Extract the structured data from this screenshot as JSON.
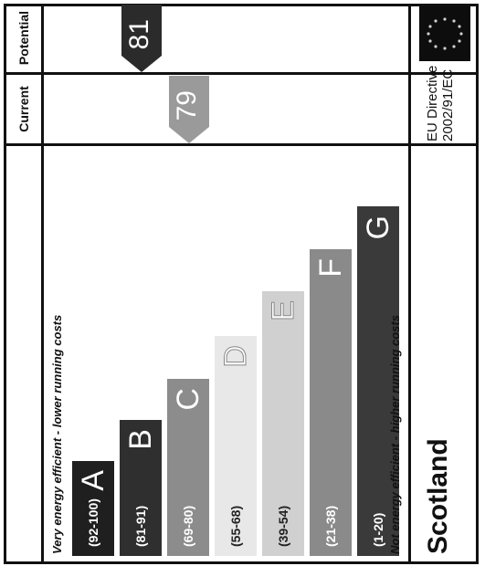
{
  "header": {
    "current": "Current",
    "potential": "Potential"
  },
  "labels": {
    "top": "Very energy efficient - lower running costs",
    "bottom": "Not energy efficient - higher running costs"
  },
  "bands": [
    {
      "range": "(92-100)",
      "letter": "A",
      "color": "#1f1f1f"
    },
    {
      "range": "(81-91)",
      "letter": "B",
      "color": "#2f2f2f"
    },
    {
      "range": "(69-80)",
      "letter": "C",
      "color": "#8c8c8c"
    },
    {
      "range": "(55-68)",
      "letter": "D",
      "color": "#e8e8e8"
    },
    {
      "range": "(39-54)",
      "letter": "E",
      "color": "#d0d0d0"
    },
    {
      "range": "(21-38)",
      "letter": "F",
      "color": "#8a8a8a"
    },
    {
      "range": "(1-20)",
      "letter": "G",
      "color": "#3a3a3a"
    }
  ],
  "ratings": {
    "current": "79",
    "potential": "81",
    "current_color": "#9a9a9a",
    "potential_color": "#2b2b2b"
  },
  "footer": {
    "country": "Scotland",
    "directive_line1": "EU Directive",
    "directive_line2": "2002/91/EC"
  },
  "icons": {
    "flag": "eu-flag-icon"
  }
}
